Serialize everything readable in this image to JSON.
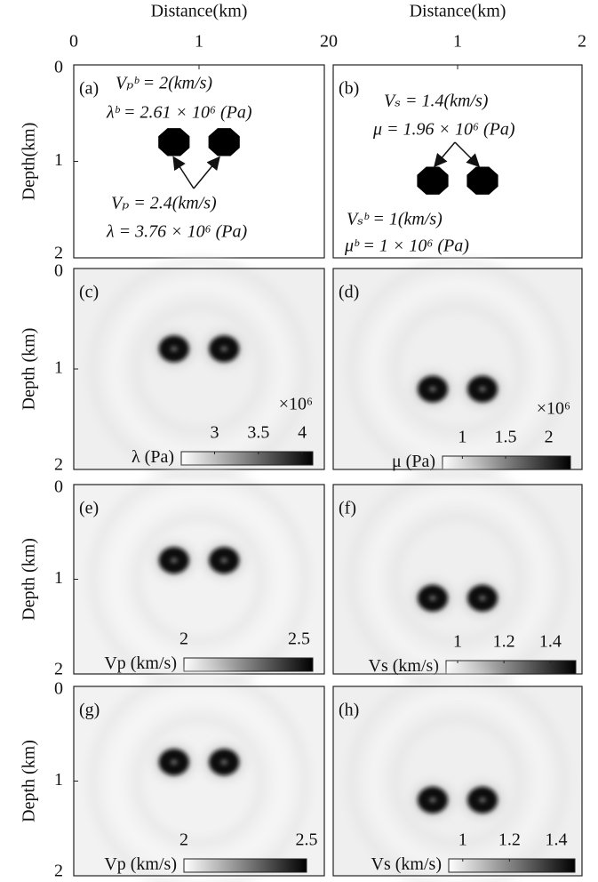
{
  "chart_data": [
    {
      "type": "image",
      "panel_label": "(a)",
      "x_label": "Distance(km)",
      "y_label": "Depth(km)",
      "xlim": [
        0,
        2
      ],
      "ylim": [
        0,
        2
      ],
      "xticks": [
        0,
        1,
        2
      ],
      "yticks": [
        0,
        1,
        2
      ],
      "background": "#ffffff",
      "marker": "octagon",
      "anomalies": {
        "x": [
          0.8,
          1.2
        ],
        "y": [
          0.8,
          0.8
        ]
      },
      "annotations": [
        "Vₚᵇ = 2(km/s)",
        "λᵇ = 2.61 × 10⁶ (Pa)",
        "Vₚ = 2.4(km/s)",
        "λ = 3.76 × 10⁶ (Pa)"
      ]
    },
    {
      "type": "image",
      "panel_label": "(b)",
      "x_label": "Distance(km)",
      "xlim": [
        0,
        2
      ],
      "ylim": [
        0,
        2
      ],
      "xticks": [
        0,
        1,
        2
      ],
      "background": "#ffffff",
      "marker": "octagon",
      "anomalies": {
        "x": [
          0.8,
          1.2
        ],
        "y": [
          1.2,
          1.2
        ]
      },
      "annotations": [
        "Vₛ = 1.4(km/s)",
        "μ = 1.96 × 10⁶ (Pa)",
        "Vₛᵇ = 1(km/s)",
        "μᵇ = 1 × 10⁶ (Pa)"
      ]
    },
    {
      "type": "image",
      "panel_label": "(c)",
      "y_label": "Depth (km)",
      "xlim": [
        0,
        2
      ],
      "ylim": [
        0,
        2
      ],
      "yticks": [
        0,
        1,
        2
      ],
      "background": "#efefef",
      "marker": "blob",
      "anomalies": {
        "x": [
          0.8,
          1.2
        ],
        "y": [
          0.8,
          0.8
        ]
      },
      "colorbar": {
        "label": "λ (Pa)",
        "multiplier": "×10⁶",
        "clim": [
          2.62,
          4.12
        ],
        "ticks": [
          3,
          3.5,
          4
        ]
      }
    },
    {
      "type": "image",
      "panel_label": "(d)",
      "xlim": [
        0,
        2
      ],
      "ylim": [
        0,
        2
      ],
      "background": "#efefef",
      "marker": "blob",
      "anomalies": {
        "x": [
          0.8,
          1.2
        ],
        "y": [
          1.2,
          1.2
        ]
      },
      "colorbar": {
        "label": "μ (Pa)",
        "multiplier": "×10⁶",
        "clim": [
          0.77,
          2.25
        ],
        "ticks": [
          1,
          1.5,
          2
        ]
      }
    },
    {
      "type": "image",
      "panel_label": "(e)",
      "y_label": "Depth (km)",
      "xlim": [
        0,
        2
      ],
      "ylim": [
        0,
        2
      ],
      "yticks": [
        0,
        1,
        2
      ],
      "background": "#f2f2f2",
      "marker": "blob",
      "anomalies": {
        "x": [
          0.8,
          1.2
        ],
        "y": [
          0.8,
          0.8
        ]
      },
      "colorbar": {
        "label": "Vp (km/s)",
        "clim": [
          2,
          2.56
        ],
        "ticks": [
          2,
          2.5
        ]
      }
    },
    {
      "type": "image",
      "panel_label": "(f)",
      "xlim": [
        0,
        2
      ],
      "ylim": [
        0,
        2
      ],
      "background": "#efefef",
      "marker": "blob",
      "anomalies": {
        "x": [
          0.8,
          1.2
        ],
        "y": [
          1.2,
          1.2
        ]
      },
      "colorbar": {
        "label": "Vs (km/s)",
        "clim": [
          0.95,
          1.51
        ],
        "ticks": [
          1,
          1.2,
          1.4
        ]
      }
    },
    {
      "type": "image",
      "panel_label": "(g)",
      "y_label": "Depth (km)",
      "xlim": [
        0,
        2
      ],
      "ylim": [
        0,
        2
      ],
      "yticks": [
        0,
        1,
        2
      ],
      "background": "#f2f2f2",
      "marker": "blob",
      "anomalies": {
        "x": [
          0.8,
          1.2
        ],
        "y": [
          0.8,
          0.8
        ]
      },
      "colorbar": {
        "label": "Vp (km/s)",
        "clim": [
          2,
          2.5
        ],
        "ticks": [
          2,
          2.5
        ]
      }
    },
    {
      "type": "image",
      "panel_label": "(h)",
      "xlim": [
        0,
        2
      ],
      "ylim": [
        0,
        2
      ],
      "background": "#efefef",
      "marker": "blob",
      "anomalies": {
        "x": [
          0.8,
          1.2
        ],
        "y": [
          1.2,
          1.2
        ]
      },
      "colorbar": {
        "label": "Vs (km/s)",
        "clim": [
          0.94,
          1.48
        ],
        "ticks": [
          1,
          1.2,
          1.4
        ]
      }
    }
  ]
}
